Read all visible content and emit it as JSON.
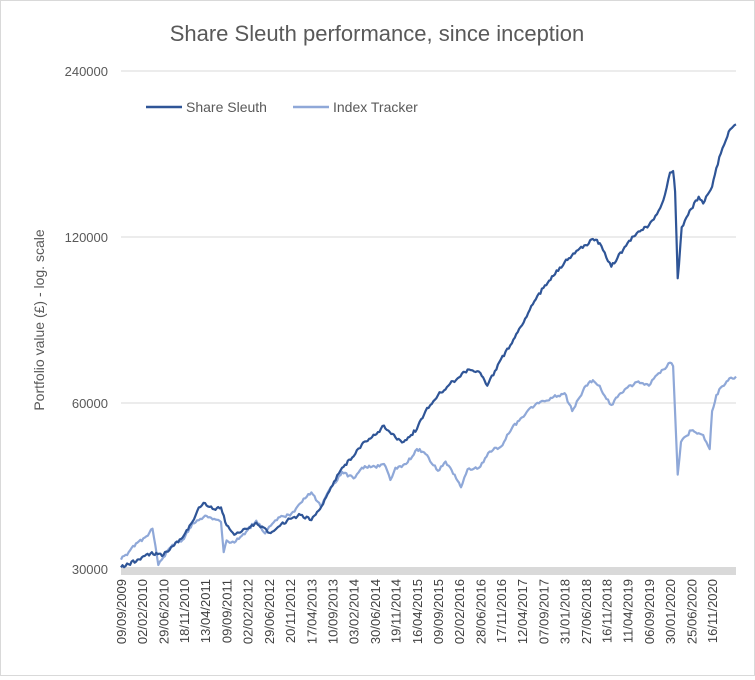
{
  "chart_data": {
    "type": "line",
    "title": "Share Sleuth performance, since inception",
    "xlabel": "",
    "ylabel": "Portfolio value (£) - log. scale",
    "y_scale": "log2",
    "ylim": [
      30000,
      240000
    ],
    "y_ticks": [
      30000,
      60000,
      120000,
      240000
    ],
    "y_tick_labels": [
      "30000",
      "60000",
      "120000",
      "240000"
    ],
    "x_range": [
      "2009-09-09",
      "2021-04-30"
    ],
    "x_tick_labels": [
      "09/09/2009",
      "02/02/2010",
      "29/06/2010",
      "18/11/2010",
      "13/04/2011",
      "09/09/2011",
      "02/02/2012",
      "29/06/2012",
      "20/11/2012",
      "17/04/2013",
      "10/09/2013",
      "03/02/2014",
      "30/06/2014",
      "19/11/2014",
      "16/04/2015",
      "09/09/2015",
      "02/02/2016",
      "28/06/2016",
      "17/11/2016",
      "12/04/2017",
      "07/09/2017",
      "31/01/2018",
      "27/06/2018",
      "16/11/2018",
      "11/04/2019",
      "06/09/2019",
      "30/01/2020",
      "25/06/2020",
      "16/11/2020"
    ],
    "x_ticks": [
      "2009-09-09",
      "2010-02-02",
      "2010-06-29",
      "2010-11-18",
      "2011-04-13",
      "2011-09-09",
      "2012-02-02",
      "2012-06-29",
      "2012-11-20",
      "2013-04-17",
      "2013-09-10",
      "2014-02-03",
      "2014-06-30",
      "2014-11-19",
      "2015-04-16",
      "2015-09-09",
      "2016-02-02",
      "2016-06-28",
      "2016-11-17",
      "2017-04-12",
      "2017-09-07",
      "2018-01-31",
      "2018-06-27",
      "2018-11-16",
      "2019-04-11",
      "2019-09-06",
      "2020-01-30",
      "2020-06-25",
      "2020-11-16"
    ],
    "grid": "horizontal",
    "legend_position": "top-left",
    "series": [
      {
        "name": "Share Sleuth",
        "color": "#2f5597",
        "points": [
          [
            "2009-09-09",
            30200
          ],
          [
            "2009-11-01",
            30600
          ],
          [
            "2010-01-01",
            31200
          ],
          [
            "2010-04-01",
            32000
          ],
          [
            "2010-06-29",
            31800
          ],
          [
            "2010-09-01",
            33000
          ],
          [
            "2010-11-18",
            34500
          ],
          [
            "2011-01-15",
            36500
          ],
          [
            "2011-03-01",
            38800
          ],
          [
            "2011-04-13",
            39500
          ],
          [
            "2011-06-15",
            38500
          ],
          [
            "2011-08-01",
            38800
          ],
          [
            "2011-09-09",
            36000
          ],
          [
            "2011-11-01",
            34600
          ],
          [
            "2012-02-02",
            35500
          ],
          [
            "2012-04-01",
            36400
          ],
          [
            "2012-06-29",
            34900
          ],
          [
            "2012-09-01",
            35800
          ],
          [
            "2012-11-20",
            37000
          ],
          [
            "2013-02-01",
            37600
          ],
          [
            "2013-04-17",
            36800
          ],
          [
            "2013-06-15",
            38500
          ],
          [
            "2013-09-10",
            42500
          ],
          [
            "2013-11-15",
            45800
          ],
          [
            "2014-02-03",
            48000
          ],
          [
            "2014-04-01",
            50500
          ],
          [
            "2014-06-30",
            52500
          ],
          [
            "2014-09-01",
            54600
          ],
          [
            "2014-11-19",
            52000
          ],
          [
            "2015-01-15",
            51000
          ],
          [
            "2015-04-16",
            53800
          ],
          [
            "2015-06-15",
            58000
          ],
          [
            "2015-09-09",
            62000
          ],
          [
            "2015-12-01",
            65000
          ],
          [
            "2016-02-02",
            66800
          ],
          [
            "2016-04-01",
            69000
          ],
          [
            "2016-06-28",
            68000
          ],
          [
            "2016-08-15",
            64500
          ],
          [
            "2016-11-17",
            72000
          ],
          [
            "2017-02-01",
            77000
          ],
          [
            "2017-04-12",
            83000
          ],
          [
            "2017-06-15",
            90000
          ],
          [
            "2017-09-07",
            97000
          ],
          [
            "2017-11-15",
            102000
          ],
          [
            "2018-01-31",
            108000
          ],
          [
            "2018-04-01",
            112000
          ],
          [
            "2018-06-27",
            116000
          ],
          [
            "2018-08-15",
            119000
          ],
          [
            "2018-10-01",
            117000
          ],
          [
            "2018-11-16",
            110000
          ],
          [
            "2018-12-20",
            106000
          ],
          [
            "2019-02-01",
            110000
          ],
          [
            "2019-04-11",
            117000
          ],
          [
            "2019-06-15",
            122000
          ],
          [
            "2019-09-06",
            126000
          ],
          [
            "2019-11-01",
            132000
          ],
          [
            "2019-12-15",
            140000
          ],
          [
            "2020-01-30",
            157000
          ],
          [
            "2020-02-20",
            158000
          ],
          [
            "2020-03-05",
            145000
          ],
          [
            "2020-03-23",
            101000
          ],
          [
            "2020-04-01",
            107000
          ],
          [
            "2020-04-20",
            125000
          ],
          [
            "2020-06-25",
            135000
          ],
          [
            "2020-08-15",
            142000
          ],
          [
            "2020-09-15",
            138000
          ],
          [
            "2020-11-16",
            148000
          ],
          [
            "2020-12-15",
            160000
          ],
          [
            "2021-01-15",
            170000
          ],
          [
            "2021-02-20",
            180000
          ],
          [
            "2021-03-20",
            188000
          ],
          [
            "2021-04-30",
            192000
          ]
        ]
      },
      {
        "name": "Index Tracker",
        "color": "#8fa8d8",
        "points": [
          [
            "2009-09-09",
            31200
          ],
          [
            "2009-11-01",
            32200
          ],
          [
            "2010-01-01",
            33500
          ],
          [
            "2010-02-20",
            34200
          ],
          [
            "2010-04-15",
            35500
          ],
          [
            "2010-05-25",
            30500
          ],
          [
            "2010-06-29",
            31500
          ],
          [
            "2010-09-01",
            33200
          ],
          [
            "2010-11-18",
            34000
          ],
          [
            "2011-01-15",
            36300
          ],
          [
            "2011-04-13",
            37500
          ],
          [
            "2011-06-15",
            37000
          ],
          [
            "2011-08-01",
            36500
          ],
          [
            "2011-08-20",
            32200
          ],
          [
            "2011-09-09",
            33800
          ],
          [
            "2011-11-01",
            33500
          ],
          [
            "2012-02-02",
            35300
          ],
          [
            "2012-04-01",
            36700
          ],
          [
            "2012-06-01",
            34800
          ],
          [
            "2012-06-29",
            35800
          ],
          [
            "2012-09-01",
            37200
          ],
          [
            "2012-11-20",
            37500
          ],
          [
            "2013-02-01",
            39500
          ],
          [
            "2013-04-17",
            41300
          ],
          [
            "2013-06-20",
            39000
          ],
          [
            "2013-09-10",
            42500
          ],
          [
            "2013-11-15",
            45000
          ],
          [
            "2014-02-03",
            43800
          ],
          [
            "2014-04-01",
            45800
          ],
          [
            "2014-06-30",
            46000
          ],
          [
            "2014-09-01",
            46500
          ],
          [
            "2014-10-15",
            43500
          ],
          [
            "2014-11-19",
            45800
          ],
          [
            "2015-02-01",
            46500
          ],
          [
            "2015-04-16",
            49500
          ],
          [
            "2015-06-15",
            48500
          ],
          [
            "2015-09-09",
            45200
          ],
          [
            "2015-11-01",
            47000
          ],
          [
            "2016-02-02",
            43000
          ],
          [
            "2016-02-15",
            42200
          ],
          [
            "2016-04-01",
            45500
          ],
          [
            "2016-06-28",
            46000
          ],
          [
            "2016-09-01",
            49000
          ],
          [
            "2016-11-17",
            50000
          ],
          [
            "2017-02-01",
            54000
          ],
          [
            "2017-04-12",
            56500
          ],
          [
            "2017-06-15",
            59000
          ],
          [
            "2017-09-07",
            60500
          ],
          [
            "2017-11-15",
            61500
          ],
          [
            "2018-01-31",
            62500
          ],
          [
            "2018-03-25",
            58000
          ],
          [
            "2018-06-27",
            64500
          ],
          [
            "2018-08-15",
            66000
          ],
          [
            "2018-10-01",
            64500
          ],
          [
            "2018-11-16",
            61000
          ],
          [
            "2018-12-20",
            59500
          ],
          [
            "2019-02-01",
            61500
          ],
          [
            "2019-04-11",
            64000
          ],
          [
            "2019-06-15",
            65500
          ],
          [
            "2019-09-06",
            64500
          ],
          [
            "2019-11-01",
            67500
          ],
          [
            "2019-12-15",
            69000
          ],
          [
            "2020-01-30",
            71000
          ],
          [
            "2020-02-20",
            70000
          ],
          [
            "2020-03-23",
            44500
          ],
          [
            "2020-04-15",
            51000
          ],
          [
            "2020-06-25",
            53500
          ],
          [
            "2020-09-15",
            52500
          ],
          [
            "2020-10-30",
            49500
          ],
          [
            "2020-11-16",
            58000
          ],
          [
            "2020-12-15",
            62000
          ],
          [
            "2021-01-15",
            64000
          ],
          [
            "2021-02-15",
            65000
          ],
          [
            "2021-03-15",
            66500
          ],
          [
            "2021-04-30",
            67000
          ]
        ]
      }
    ]
  }
}
